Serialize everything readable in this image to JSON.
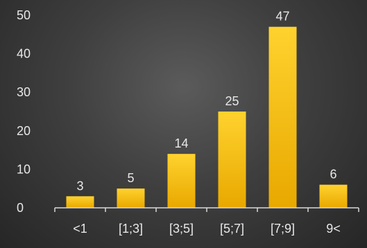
{
  "chart_data": {
    "type": "bar",
    "categories": [
      "<1",
      "[1;3]",
      "[3;5]",
      "[5;7]",
      "[7;9]",
      "9<"
    ],
    "values": [
      3,
      5,
      14,
      25,
      47,
      6
    ],
    "title": "",
    "xlabel": "",
    "ylabel": "",
    "ylim": [
      0,
      50
    ],
    "yticks": [
      0,
      10,
      20,
      30,
      40,
      50
    ],
    "grid": false,
    "legend": "none",
    "bar_color": "#FFC000",
    "data_labels": true
  }
}
